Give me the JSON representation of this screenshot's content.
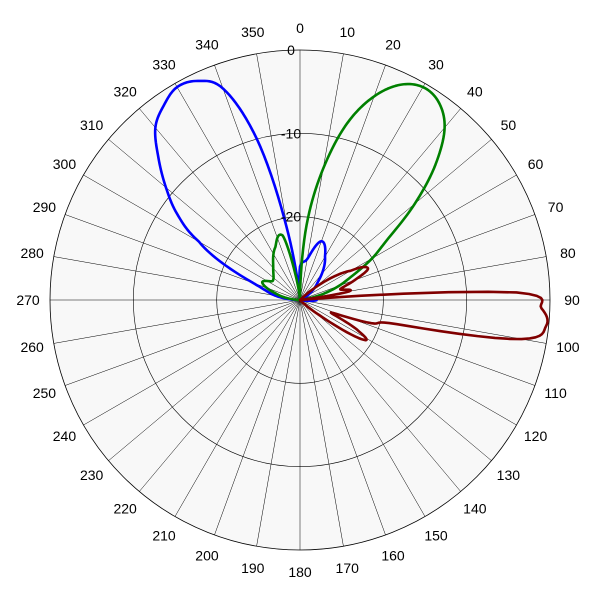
{
  "chart_data": {
    "type": "polar-line",
    "title": "",
    "angle_ticks": [
      "0",
      "10",
      "20",
      "30",
      "40",
      "50",
      "60",
      "70",
      "80",
      "90",
      "100",
      "110",
      "120",
      "130",
      "140",
      "150",
      "160",
      "170",
      "180",
      "190",
      "200",
      "210",
      "220",
      "230",
      "240",
      "250",
      "260",
      "270",
      "280",
      "290",
      "300",
      "310",
      "320",
      "330",
      "340",
      "350"
    ],
    "radial_ticks": [
      "0",
      "-10",
      "-20"
    ],
    "radial_range_db": [
      -30,
      0
    ],
    "angle_step_deg": 10,
    "grid": true,
    "background": "#f8f8f8",
    "series": [
      {
        "color": "#0000ff",
        "points": [
          {
            "angle": 270,
            "r": -29.5
          },
          {
            "angle": 280,
            "r": -27
          },
          {
            "angle": 290,
            "r": -24
          },
          {
            "angle": 300,
            "r": -16
          },
          {
            "angle": 305,
            "r": -12
          },
          {
            "angle": 310,
            "r": -9
          },
          {
            "angle": 315,
            "r": -6
          },
          {
            "angle": 320,
            "r": -3
          },
          {
            "angle": 325,
            "r": -1.5
          },
          {
            "angle": 330,
            "r": -0.5
          },
          {
            "angle": 335,
            "r": -1
          },
          {
            "angle": 340,
            "r": -3
          },
          {
            "angle": 345,
            "r": -10
          },
          {
            "angle": 350,
            "r": -22
          },
          {
            "angle": 355,
            "r": -30
          },
          {
            "angle": 0,
            "r": -26
          },
          {
            "angle": 10,
            "r": -25
          },
          {
            "angle": 20,
            "r": -22.5
          },
          {
            "angle": 30,
            "r": -24
          },
          {
            "angle": 45,
            "r": -27
          },
          {
            "angle": 70,
            "r": -30
          },
          {
            "angle": 90,
            "r": -28
          },
          {
            "angle": 100,
            "r": -30
          }
        ]
      },
      {
        "color": "#008000",
        "points": [
          {
            "angle": 0,
            "r": -30
          },
          {
            "angle": 5,
            "r": -21
          },
          {
            "angle": 10,
            "r": -14
          },
          {
            "angle": 15,
            "r": -8
          },
          {
            "angle": 20,
            "r": -4
          },
          {
            "angle": 25,
            "r": -1.5
          },
          {
            "angle": 30,
            "r": -0.5
          },
          {
            "angle": 35,
            "r": -1
          },
          {
            "angle": 40,
            "r": -3
          },
          {
            "angle": 45,
            "r": -7
          },
          {
            "angle": 50,
            "r": -12
          },
          {
            "angle": 55,
            "r": -17
          },
          {
            "angle": 60,
            "r": -20
          },
          {
            "angle": 65,
            "r": -23
          },
          {
            "angle": 70,
            "r": -25
          },
          {
            "angle": 75,
            "r": -27
          },
          {
            "angle": 80,
            "r": -29
          },
          {
            "angle": 85,
            "r": -30
          },
          {
            "angle": 270,
            "r": -30
          },
          {
            "angle": 285,
            "r": -27
          },
          {
            "angle": 295,
            "r": -25
          },
          {
            "angle": 305,
            "r": -26
          },
          {
            "angle": 320,
            "r": -25
          },
          {
            "angle": 335,
            "r": -23
          },
          {
            "angle": 345,
            "r": -22
          },
          {
            "angle": 350,
            "r": -27
          },
          {
            "angle": 355,
            "r": -30
          }
        ]
      },
      {
        "color": "#800000",
        "points": [
          {
            "angle": 45,
            "r": -30
          },
          {
            "angle": 60,
            "r": -23
          },
          {
            "angle": 65,
            "r": -21
          },
          {
            "angle": 70,
            "r": -23
          },
          {
            "angle": 75,
            "r": -25
          },
          {
            "angle": 80,
            "r": -24
          },
          {
            "angle": 85,
            "r": -30
          },
          {
            "angle": 88,
            "r": -4
          },
          {
            "angle": 92,
            "r": -1
          },
          {
            "angle": 96,
            "r": -0.3
          },
          {
            "angle": 100,
            "r": -3
          },
          {
            "angle": 104,
            "r": -18
          },
          {
            "angle": 108,
            "r": -21
          },
          {
            "angle": 112,
            "r": -26
          },
          {
            "angle": 118,
            "r": -22
          },
          {
            "angle": 122,
            "r": -21
          },
          {
            "angle": 128,
            "r": -27
          },
          {
            "angle": 135,
            "r": -30
          }
        ]
      }
    ]
  }
}
